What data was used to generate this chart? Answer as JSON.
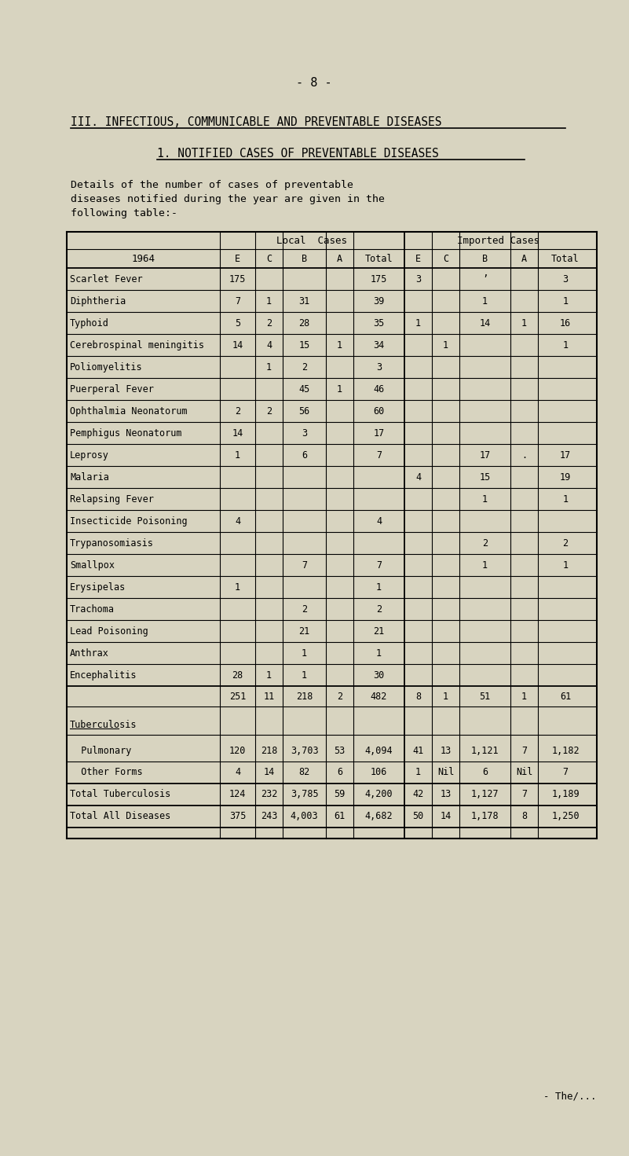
{
  "page_number": "- 8 -",
  "section_title": "III. INFECTIOUS, COMMUNICABLE AND PREVENTABLE DISEASES",
  "subsection_title": "1. NOTIFIED CASES OF PREVENTABLE DISEASES",
  "intro_text": "Details of the number of cases of preventable\ndiseases notified during the year are given in the\nfollowing table:-",
  "footer_text": "- The/...",
  "bg_color": "#d8d4c0",
  "col_header_year": "1964",
  "col_group1": "Local  Cases",
  "col_group2": "Imported Cases",
  "col_subheaders": [
    "E",
    "C",
    "B",
    "A",
    "Total",
    "E",
    "C",
    "B",
    "A",
    "Total"
  ],
  "rows": [
    {
      "disease": "Scarlet Fever",
      "lE": "175",
      "lC": "",
      "lB": "",
      "lA": "",
      "lT": "175",
      "iE": "3",
      "iC": "",
      "iB": "’",
      "iA": "",
      "iT": "3"
    },
    {
      "disease": "Diphtheria",
      "lE": "7",
      "lC": "1",
      "lB": "31",
      "lA": "",
      "lT": "39",
      "iE": "",
      "iC": "",
      "iB": "1",
      "iA": "",
      "iT": "1"
    },
    {
      "disease": "Typhoid",
      "lE": "5",
      "lC": "2",
      "lB": "28",
      "lA": "",
      "lT": "35",
      "iE": "1",
      "iC": "",
      "iB": "14",
      "iA": "1",
      "iT": "16"
    },
    {
      "disease": "Cerebrospinal meningitis",
      "lE": "14",
      "lC": "4",
      "lB": "15",
      "lA": "1",
      "lT": "34",
      "iE": "",
      "iC": "1",
      "iB": "",
      "iA": "",
      "iT": "1"
    },
    {
      "disease": "Poliomyelitis",
      "lE": "",
      "lC": "1",
      "lB": "2",
      "lA": "",
      "lT": "3",
      "iE": "",
      "iC": "",
      "iB": "",
      "iA": "",
      "iT": ""
    },
    {
      "disease": "Puerperal Fever",
      "lE": "",
      "lC": "",
      "lB": "45",
      "lA": "1",
      "lT": "46",
      "iE": "",
      "iC": "",
      "iB": "",
      "iA": "",
      "iT": ""
    },
    {
      "disease": "Ophthalmia Neonatorum",
      "lE": "2",
      "lC": "2",
      "lB": "56",
      "lA": "",
      "lT": "60",
      "iE": "",
      "iC": "",
      "iB": "",
      "iA": "",
      "iT": ""
    },
    {
      "disease": "Pemphigus Neonatorum",
      "lE": "14",
      "lC": "",
      "lB": "3",
      "lA": "",
      "lT": "17",
      "iE": "",
      "iC": "",
      "iB": "",
      "iA": "",
      "iT": ""
    },
    {
      "disease": "Leprosy",
      "lE": "1",
      "lC": "",
      "lB": "6",
      "lA": "",
      "lT": "7",
      "iE": "",
      "iC": "",
      "iB": "17",
      "iA": ".",
      "iT": "17"
    },
    {
      "disease": "Malaria",
      "lE": "",
      "lC": "",
      "lB": "",
      "lA": "",
      "lT": "",
      "iE": "4",
      "iC": "",
      "iB": "15",
      "iA": "",
      "iT": "19"
    },
    {
      "disease": "Relapsing Fever",
      "lE": "",
      "lC": "",
      "lB": "",
      "lA": "",
      "lT": "",
      "iE": "",
      "iC": "",
      "iB": "1",
      "iA": "",
      "iT": "1"
    },
    {
      "disease": "Insecticide Poisoning",
      "lE": "4",
      "lC": "",
      "lB": "",
      "lA": "",
      "lT": "4",
      "iE": "",
      "iC": "",
      "iB": "",
      "iA": "",
      "iT": ""
    },
    {
      "disease": "Trypanosomiasis",
      "lE": "",
      "lC": "",
      "lB": "",
      "lA": "",
      "lT": "",
      "iE": "",
      "iC": "",
      "iB": "2",
      "iA": "",
      "iT": "2"
    },
    {
      "disease": "Smallpox",
      "lE": "",
      "lC": "",
      "lB": "7",
      "lA": "",
      "lT": "7",
      "iE": "",
      "iC": "",
      "iB": "1",
      "iA": "",
      "iT": "1"
    },
    {
      "disease": "Erysipelas",
      "lE": "1",
      "lC": "",
      "lB": "",
      "lA": "",
      "lT": "1",
      "iE": "",
      "iC": "",
      "iB": "",
      "iA": "",
      "iT": ""
    },
    {
      "disease": "Trachoma",
      "lE": "",
      "lC": "",
      "lB": "2",
      "lA": "",
      "lT": "2",
      "iE": "",
      "iC": "",
      "iB": "",
      "iA": "",
      "iT": ""
    },
    {
      "disease": "Lead Poisoning",
      "lE": "",
      "lC": "",
      "lB": "21",
      "lA": "",
      "lT": "21",
      "iE": "",
      "iC": "",
      "iB": "",
      "iA": "",
      "iT": ""
    },
    {
      "disease": "Anthrax",
      "lE": "",
      "lC": "",
      "lB": "1",
      "lA": "",
      "lT": "1",
      "iE": "",
      "iC": "",
      "iB": "",
      "iA": "",
      "iT": ""
    },
    {
      "disease": "Encephalitis",
      "lE": "28",
      "lC": "1",
      "lB": "1",
      "lA": "",
      "lT": "30",
      "iE": "",
      "iC": "",
      "iB": "",
      "iA": "",
      "iT": ""
    }
  ],
  "subtotal_row": {
    "lE": "251",
    "lC": "11",
    "lB": "218",
    "lA": "2",
    "lT": "482",
    "iE": "8",
    "iC": "1",
    "iB": "51",
    "iA": "1",
    "iT": "61"
  },
  "tb_section_label": "Tuberculosis",
  "tb_rows": [
    {
      "disease": "  Pulmonary",
      "lE": "120",
      "lC": "218",
      "lB": "3,703",
      "lA": "53",
      "lT": "4,094",
      "iE": "41",
      "iC": "13",
      "iB": "1,121",
      "iA": "7",
      "iT": "1,182"
    },
    {
      "disease": "  Other Forms",
      "lE": "4",
      "lC": "14",
      "lB": "82",
      "lA": "6",
      "lT": "106",
      "iE": "1",
      "iC": "Nil",
      "iB": "6",
      "iA": "Nil",
      "iT": "7"
    }
  ],
  "total_tb_row": {
    "label": "Total Tuberculosis",
    "lE": "124",
    "lC": "232",
    "lB": "3,785",
    "lA": "59",
    "lT": "4,200",
    "iE": "42",
    "iC": "13",
    "iB": "1,127",
    "iA": "7",
    "iT": "1,189"
  },
  "total_all_row": {
    "label": "Total All Diseases",
    "lE": "375",
    "lC": "243",
    "lB": "4,003",
    "lA": "61",
    "lT": "4,682",
    "iE": "50",
    "iC": "14",
    "iB": "1,178",
    "iA": "8",
    "iT": "1,250"
  }
}
